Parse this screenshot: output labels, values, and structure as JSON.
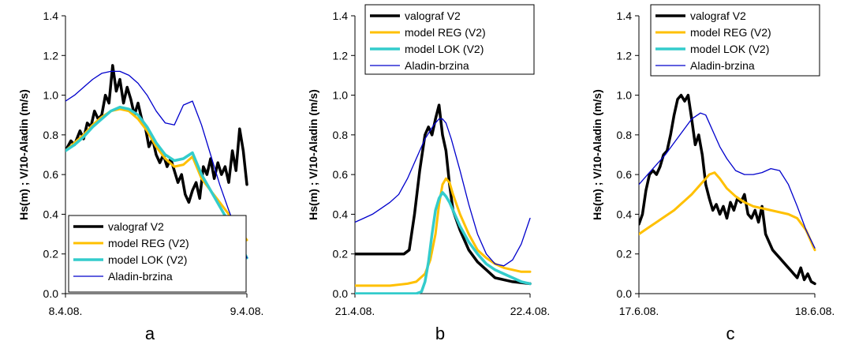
{
  "figure": {
    "y_axis_label": "Hs(m) ; V/10-Aladin (m/s)",
    "y_ticks": [
      "0.0",
      "0.2",
      "0.4",
      "0.6",
      "0.8",
      "1.0",
      "1.2",
      "1.4"
    ]
  },
  "chart_data": [
    {
      "type": "line",
      "panel_label": "a",
      "ylabel": "Hs(m) ; V/10-Aladin (m/s)",
      "ylim": [
        0,
        1.4
      ],
      "x_ticks": [
        "8.4.08.",
        "9.4.08."
      ],
      "xlim": [
        0,
        1
      ],
      "legend_position": "bottom-right",
      "series": [
        {
          "name": "valograf V2",
          "color": "#000000",
          "x": [
            0,
            0.03,
            0.05,
            0.08,
            0.1,
            0.12,
            0.14,
            0.16,
            0.18,
            0.2,
            0.22,
            0.24,
            0.26,
            0.28,
            0.3,
            0.32,
            0.34,
            0.36,
            0.38,
            0.4,
            0.42,
            0.44,
            0.46,
            0.48,
            0.5,
            0.52,
            0.54,
            0.56,
            0.58,
            0.6,
            0.62,
            0.64,
            0.66,
            0.68,
            0.7,
            0.72,
            0.74,
            0.76,
            0.78,
            0.8,
            0.82,
            0.84,
            0.86,
            0.88,
            0.9,
            0.92,
            0.94,
            0.96,
            0.98,
            1.0
          ],
          "y": [
            0.72,
            0.77,
            0.75,
            0.82,
            0.78,
            0.86,
            0.84,
            0.92,
            0.88,
            0.9,
            1.0,
            0.96,
            1.15,
            1.02,
            1.08,
            0.96,
            1.04,
            0.98,
            0.9,
            0.96,
            0.88,
            0.84,
            0.74,
            0.78,
            0.7,
            0.66,
            0.7,
            0.64,
            0.68,
            0.62,
            0.56,
            0.6,
            0.5,
            0.46,
            0.52,
            0.56,
            0.48,
            0.64,
            0.6,
            0.68,
            0.58,
            0.66,
            0.6,
            0.64,
            0.56,
            0.72,
            0.62,
            0.83,
            0.72,
            0.55
          ]
        },
        {
          "name": "model REG (V2)",
          "color": "#FFC000",
          "x": [
            0,
            0.05,
            0.1,
            0.15,
            0.2,
            0.25,
            0.3,
            0.35,
            0.4,
            0.45,
            0.5,
            0.55,
            0.6,
            0.65,
            0.7,
            0.75,
            0.8,
            0.85,
            0.9,
            0.95,
            1.0
          ],
          "y": [
            0.72,
            0.76,
            0.8,
            0.85,
            0.89,
            0.92,
            0.93,
            0.92,
            0.88,
            0.82,
            0.74,
            0.68,
            0.64,
            0.65,
            0.69,
            0.58,
            0.52,
            0.46,
            0.4,
            0.33,
            0.27
          ]
        },
        {
          "name": "model LOK (V2)",
          "color": "#33CCCC",
          "x": [
            0,
            0.05,
            0.1,
            0.15,
            0.2,
            0.25,
            0.3,
            0.35,
            0.4,
            0.45,
            0.5,
            0.55,
            0.6,
            0.65,
            0.7,
            0.75,
            0.8,
            0.85,
            0.9,
            0.95,
            1.0
          ],
          "y": [
            0.72,
            0.75,
            0.79,
            0.84,
            0.88,
            0.92,
            0.94,
            0.93,
            0.9,
            0.84,
            0.76,
            0.7,
            0.67,
            0.68,
            0.71,
            0.6,
            0.52,
            0.44,
            0.36,
            0.27,
            0.18
          ]
        },
        {
          "name": "Aladin-brzina",
          "color": "#0000CC",
          "x": [
            0,
            0.05,
            0.1,
            0.15,
            0.2,
            0.25,
            0.3,
            0.35,
            0.4,
            0.45,
            0.5,
            0.55,
            0.6,
            0.65,
            0.7,
            0.75,
            0.8,
            0.85,
            0.9,
            0.95,
            1.0
          ],
          "y": [
            0.97,
            1.0,
            1.04,
            1.08,
            1.11,
            1.12,
            1.12,
            1.1,
            1.06,
            1.0,
            0.92,
            0.86,
            0.85,
            0.95,
            0.97,
            0.85,
            0.7,
            0.55,
            0.42,
            0.3,
            0.18
          ]
        }
      ]
    },
    {
      "type": "line",
      "panel_label": "b",
      "ylabel": "Hs(m) ; V/10-Aladin (m/s)",
      "ylim": [
        0,
        1.4
      ],
      "x_ticks": [
        "21.4.08.",
        "22.4.08."
      ],
      "xlim": [
        0,
        1
      ],
      "legend_position": "top-right",
      "series": [
        {
          "name": "valograf V2",
          "color": "#000000",
          "x": [
            0,
            0.1,
            0.2,
            0.28,
            0.31,
            0.34,
            0.37,
            0.4,
            0.42,
            0.44,
            0.46,
            0.48,
            0.5,
            0.52,
            0.54,
            0.56,
            0.6,
            0.65,
            0.7,
            0.75,
            0.8,
            0.85,
            0.9,
            1.0
          ],
          "y": [
            0.2,
            0.2,
            0.2,
            0.2,
            0.22,
            0.4,
            0.62,
            0.8,
            0.84,
            0.8,
            0.88,
            0.95,
            0.8,
            0.72,
            0.55,
            0.42,
            0.32,
            0.22,
            0.16,
            0.12,
            0.08,
            0.07,
            0.06,
            0.05
          ]
        },
        {
          "name": "model REG (V2)",
          "color": "#FFC000",
          "x": [
            0,
            0.1,
            0.2,
            0.3,
            0.35,
            0.4,
            0.43,
            0.46,
            0.48,
            0.5,
            0.52,
            0.54,
            0.56,
            0.6,
            0.65,
            0.7,
            0.75,
            0.8,
            0.85,
            0.9,
            0.95,
            1.0
          ],
          "y": [
            0.04,
            0.04,
            0.04,
            0.05,
            0.06,
            0.1,
            0.17,
            0.3,
            0.45,
            0.55,
            0.58,
            0.56,
            0.5,
            0.4,
            0.3,
            0.22,
            0.18,
            0.15,
            0.13,
            0.12,
            0.11,
            0.11
          ]
        },
        {
          "name": "model LOK (V2)",
          "color": "#33CCCC",
          "x": [
            0,
            0.1,
            0.2,
            0.3,
            0.35,
            0.38,
            0.4,
            0.42,
            0.44,
            0.46,
            0.48,
            0.5,
            0.52,
            0.54,
            0.56,
            0.6,
            0.65,
            0.7,
            0.75,
            0.8,
            0.85,
            0.9,
            0.95,
            1.0
          ],
          "y": [
            0,
            0,
            0,
            0,
            0,
            0.01,
            0.06,
            0.16,
            0.3,
            0.42,
            0.48,
            0.51,
            0.49,
            0.46,
            0.42,
            0.34,
            0.26,
            0.2,
            0.15,
            0.12,
            0.1,
            0.08,
            0.06,
            0.05
          ]
        },
        {
          "name": "Aladin-brzina",
          "color": "#0000CC",
          "x": [
            0,
            0.05,
            0.1,
            0.15,
            0.2,
            0.25,
            0.3,
            0.35,
            0.4,
            0.45,
            0.48,
            0.5,
            0.52,
            0.55,
            0.6,
            0.65,
            0.7,
            0.75,
            0.8,
            0.85,
            0.9,
            0.95,
            1.0
          ],
          "y": [
            0.36,
            0.38,
            0.4,
            0.43,
            0.46,
            0.5,
            0.58,
            0.68,
            0.78,
            0.85,
            0.88,
            0.88,
            0.86,
            0.78,
            0.62,
            0.45,
            0.3,
            0.2,
            0.15,
            0.14,
            0.17,
            0.25,
            0.38
          ]
        }
      ]
    },
    {
      "type": "line",
      "panel_label": "c",
      "ylabel": "Hs(m) ; V/10-Aladin (m/s)",
      "ylim": [
        0,
        1.4
      ],
      "x_ticks": [
        "17.6.08.",
        "18.6.08."
      ],
      "xlim": [
        0,
        1
      ],
      "legend_position": "top-right",
      "series": [
        {
          "name": "valograf V2",
          "color": "#000000",
          "x": [
            0,
            0.02,
            0.04,
            0.06,
            0.08,
            0.1,
            0.12,
            0.14,
            0.16,
            0.18,
            0.2,
            0.22,
            0.24,
            0.26,
            0.28,
            0.3,
            0.32,
            0.34,
            0.36,
            0.38,
            0.4,
            0.42,
            0.44,
            0.46,
            0.48,
            0.5,
            0.52,
            0.54,
            0.56,
            0.58,
            0.6,
            0.62,
            0.64,
            0.66,
            0.68,
            0.7,
            0.72,
            0.74,
            0.76,
            0.78,
            0.8,
            0.82,
            0.84,
            0.86,
            0.88,
            0.9,
            0.92,
            0.94,
            0.96,
            0.98,
            1.0
          ],
          "y": [
            0.35,
            0.4,
            0.52,
            0.6,
            0.62,
            0.6,
            0.64,
            0.7,
            0.72,
            0.8,
            0.9,
            0.98,
            1.0,
            0.97,
            1.0,
            0.88,
            0.75,
            0.8,
            0.7,
            0.55,
            0.48,
            0.42,
            0.45,
            0.4,
            0.44,
            0.38,
            0.46,
            0.42,
            0.48,
            0.46,
            0.5,
            0.4,
            0.38,
            0.42,
            0.36,
            0.44,
            0.3,
            0.26,
            0.22,
            0.2,
            0.18,
            0.16,
            0.14,
            0.12,
            0.1,
            0.08,
            0.13,
            0.07,
            0.1,
            0.06,
            0.05
          ]
        },
        {
          "name": "model REG (V2)",
          "color": "#FFC000",
          "x": [
            0,
            0.05,
            0.1,
            0.15,
            0.2,
            0.25,
            0.3,
            0.35,
            0.4,
            0.43,
            0.46,
            0.5,
            0.55,
            0.6,
            0.65,
            0.7,
            0.75,
            0.8,
            0.85,
            0.9,
            0.95,
            1.0
          ],
          "y": [
            0.3,
            0.33,
            0.36,
            0.39,
            0.42,
            0.46,
            0.5,
            0.55,
            0.6,
            0.61,
            0.58,
            0.53,
            0.49,
            0.46,
            0.44,
            0.43,
            0.42,
            0.41,
            0.4,
            0.38,
            0.32,
            0.22
          ]
        },
        {
          "name": "Aladin-brzina",
          "color": "#0000CC",
          "x": [
            0,
            0.05,
            0.1,
            0.15,
            0.2,
            0.25,
            0.3,
            0.35,
            0.38,
            0.4,
            0.43,
            0.46,
            0.5,
            0.55,
            0.6,
            0.65,
            0.7,
            0.75,
            0.8,
            0.85,
            0.9,
            0.95,
            1.0
          ],
          "y": [
            0.55,
            0.6,
            0.65,
            0.7,
            0.76,
            0.82,
            0.88,
            0.91,
            0.9,
            0.86,
            0.8,
            0.74,
            0.68,
            0.62,
            0.6,
            0.6,
            0.61,
            0.63,
            0.62,
            0.55,
            0.44,
            0.32,
            0.23
          ]
        }
      ]
    }
  ],
  "legend_entries": [
    {
      "name": "valograf V2",
      "color": "#000000",
      "width": 3.5
    },
    {
      "name": "model REG (V2)",
      "color": "#FFC000",
      "width": 3
    },
    {
      "name": "model LOK (V2)",
      "color": "#33CCCC",
      "width": 3.5
    },
    {
      "name": "Aladin-brzina",
      "color": "#0000CC",
      "width": 1.3
    }
  ]
}
